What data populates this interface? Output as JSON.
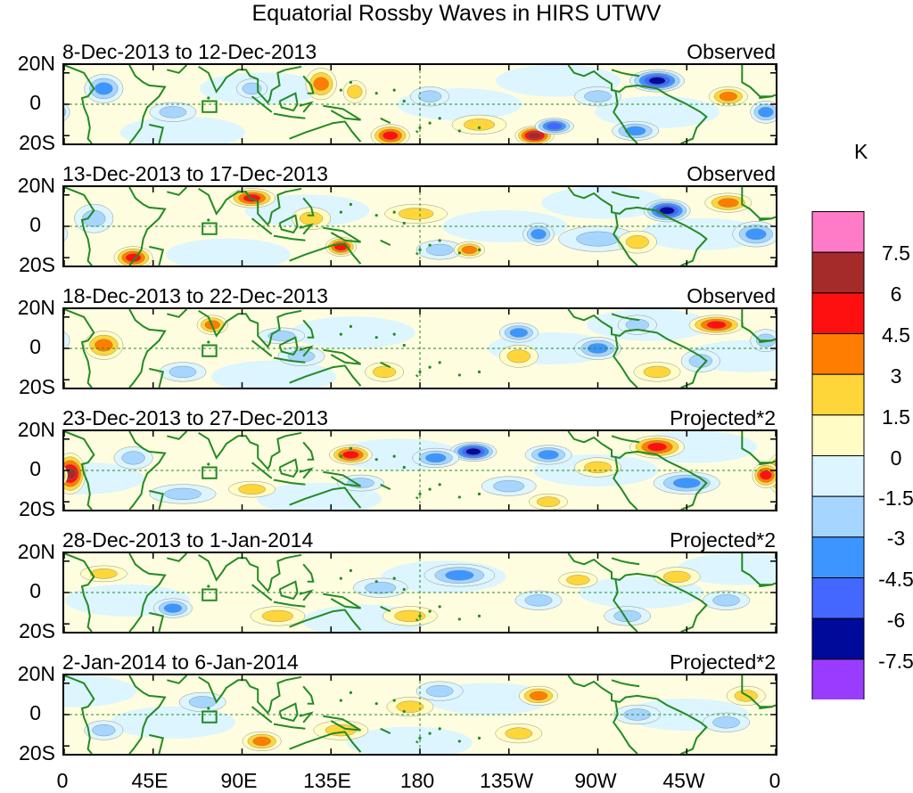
{
  "title": "Equatorial Rossby Waves in HIRS UTWV",
  "unit": "K",
  "chart_data": {
    "type": "heatmap",
    "title": "Equatorial Rossby Waves in HIRS UTWV",
    "x_ticks": [
      "0",
      "45E",
      "90E",
      "135E",
      "180",
      "135W",
      "90W",
      "45W",
      "0"
    ],
    "y_ticks": [
      "20N",
      "0",
      "20S"
    ],
    "xlim": [
      0,
      360
    ],
    "ylim": [
      -25,
      25
    ],
    "colorbar": {
      "label": "K",
      "levels": [
        "7.5",
        "6",
        "4.5",
        "3",
        "1.5",
        "0",
        "-1.5",
        "-3",
        "-4.5",
        "-6",
        "-7.5"
      ],
      "colors": [
        "#ff7bc8",
        "#a52a2a",
        "#ff1010",
        "#ff7d00",
        "#ffd63a",
        "#fffcc6",
        "#dcf5ff",
        "#a6d6ff",
        "#3d96ff",
        "#4468ff",
        "#000a9a",
        "#9a3cff"
      ]
    },
    "panels": [
      {
        "dates": "8-Dec-2013 to 12-Dec-2013",
        "label": "Observed",
        "blobs": [
          [
            130,
            13,
            6,
            9,
            3.5
          ],
          [
            147,
            8,
            4,
            6,
            2.5
          ],
          [
            165,
            -20,
            8,
            6,
            5.5
          ],
          [
            238,
            -20,
            8,
            5,
            6.5
          ],
          [
            210,
            -13,
            12,
            5,
            2.5
          ],
          [
            248,
            -14,
            8,
            4,
            -5
          ],
          [
            289,
            -17,
            10,
            5,
            -3.5
          ],
          [
            300,
            15,
            12,
            6,
            -6
          ],
          [
            336,
            5,
            8,
            5,
            3
          ],
          [
            355,
            -5,
            6,
            6,
            -4
          ],
          [
            20,
            10,
            8,
            8,
            -3
          ],
          [
            55,
            -5,
            10,
            5,
            -2.5
          ],
          [
            185,
            5,
            8,
            5,
            -2
          ],
          [
            270,
            5,
            10,
            5,
            -2
          ],
          [
            95,
            10,
            6,
            5,
            -1.5
          ]
        ]
      },
      {
        "dates": "13-Dec-2013 to 17-Dec-2013",
        "label": "Observed",
        "blobs": [
          [
            95,
            18,
            10,
            5,
            5
          ],
          [
            125,
            5,
            8,
            6,
            1.5
          ],
          [
            35,
            -20,
            8,
            6,
            5
          ],
          [
            140,
            -13,
            6,
            5,
            4.5
          ],
          [
            178,
            8,
            14,
            5,
            2
          ],
          [
            270,
            -8,
            18,
            7,
            -2
          ],
          [
            305,
            10,
            10,
            6,
            -6
          ],
          [
            336,
            15,
            10,
            5,
            4
          ],
          [
            350,
            -5,
            10,
            7,
            -3.5
          ],
          [
            240,
            -5,
            6,
            6,
            -3
          ],
          [
            15,
            5,
            8,
            8,
            -2.5
          ],
          [
            190,
            -15,
            10,
            5,
            -2
          ],
          [
            205,
            -15,
            6,
            4,
            3
          ],
          [
            290,
            -10,
            8,
            6,
            1.5
          ]
        ]
      },
      {
        "dates": "18-Dec-2013 to 22-Dec-2013",
        "label": "Observed",
        "blobs": [
          [
            20,
            2,
            8,
            8,
            4
          ],
          [
            75,
            15,
            6,
            5,
            3
          ],
          [
            162,
            -15,
            8,
            5,
            2.5
          ],
          [
            230,
            -5,
            8,
            6,
            2.5
          ],
          [
            330,
            15,
            12,
            5,
            5
          ],
          [
            270,
            0,
            10,
            6,
            -3
          ],
          [
            322,
            -8,
            8,
            6,
            -2.5
          ],
          [
            230,
            10,
            8,
            5,
            -3
          ],
          [
            290,
            15,
            8,
            5,
            -2.5
          ],
          [
            120,
            -5,
            10,
            5,
            -2
          ],
          [
            110,
            8,
            10,
            4,
            -2
          ],
          [
            355,
            5,
            6,
            6,
            -2.5
          ],
          [
            60,
            -15,
            10,
            5,
            -2
          ],
          [
            300,
            -15,
            10,
            5,
            1.5
          ]
        ]
      },
      {
        "dates": "23-Dec-2013 to 27-Dec-2013",
        "label": "Projected*2",
        "blobs": [
          [
            3,
            -2,
            6,
            12,
            6
          ],
          [
            145,
            10,
            9,
            5,
            5
          ],
          [
            300,
            15,
            12,
            6,
            5
          ],
          [
            355,
            -3,
            5,
            7,
            5.5
          ],
          [
            207,
            12,
            10,
            5,
            -7
          ],
          [
            188,
            8,
            10,
            5,
            -3
          ],
          [
            245,
            10,
            10,
            5,
            -3
          ],
          [
            225,
            -10,
            12,
            5,
            -2.5
          ],
          [
            315,
            -8,
            15,
            6,
            -3
          ],
          [
            60,
            -15,
            15,
            5,
            -2.5
          ],
          [
            95,
            -12,
            10,
            4,
            2.5
          ],
          [
            245,
            -20,
            8,
            4,
            2
          ],
          [
            270,
            2,
            10,
            5,
            2
          ],
          [
            150,
            -8,
            10,
            4,
            -2
          ],
          [
            35,
            8,
            8,
            6,
            -1.5
          ]
        ]
      },
      {
        "dates": "28-Dec-2013 to 1-Jan-2014",
        "label": "Projected*2",
        "blobs": [
          [
            200,
            11,
            16,
            6,
            -4
          ],
          [
            55,
            -10,
            8,
            5,
            -3
          ],
          [
            240,
            -5,
            10,
            5,
            -2
          ],
          [
            335,
            -5,
            10,
            5,
            -2
          ],
          [
            108,
            -15,
            12,
            5,
            2.5
          ],
          [
            175,
            -15,
            12,
            5,
            2
          ],
          [
            20,
            12,
            10,
            4,
            2
          ],
          [
            260,
            8,
            8,
            4,
            1.5
          ],
          [
            310,
            10,
            10,
            5,
            1.5
          ],
          [
            160,
            3,
            12,
            5,
            -1.5
          ],
          [
            285,
            -15,
            10,
            5,
            -2
          ]
        ]
      },
      {
        "dates": "2-Jan-2014 to 6-Jan-2014",
        "label": "Projected*2",
        "blobs": [
          [
            240,
            12,
            8,
            5,
            4
          ],
          [
            100,
            -17,
            8,
            5,
            3
          ],
          [
            190,
            15,
            10,
            5,
            -2.5
          ],
          [
            70,
            8,
            10,
            5,
            -2
          ],
          [
            290,
            0,
            10,
            5,
            -2
          ],
          [
            335,
            -5,
            10,
            5,
            -2
          ],
          [
            140,
            -10,
            12,
            5,
            2
          ],
          [
            230,
            -12,
            10,
            5,
            1.5
          ],
          [
            345,
            12,
            8,
            5,
            2
          ],
          [
            20,
            -10,
            8,
            5,
            -1.5
          ],
          [
            175,
            5,
            10,
            5,
            1.5
          ]
        ]
      }
    ]
  }
}
